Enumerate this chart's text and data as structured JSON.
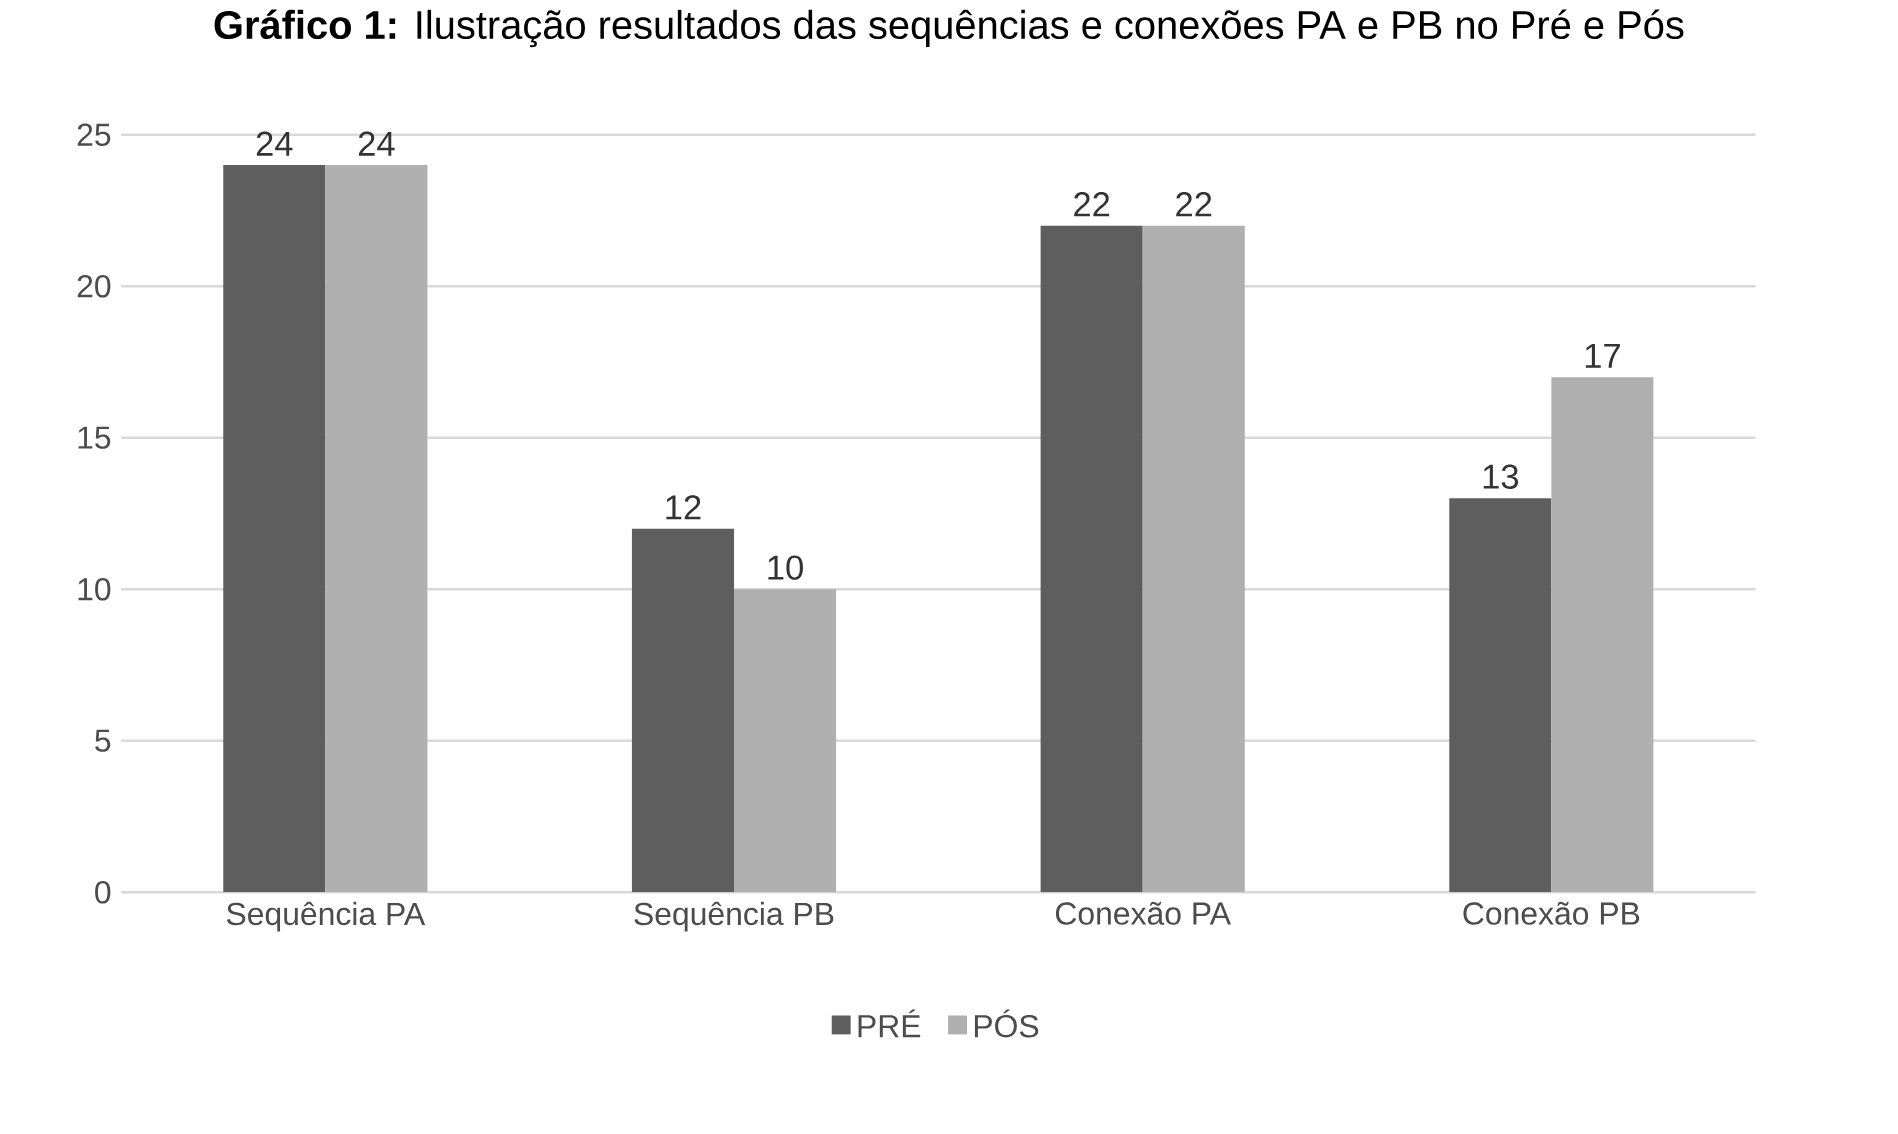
{
  "chart_data": {
    "type": "bar",
    "title": "**Gráfico 1:** Ilustração resultados das sequências e conexões PA e PB no Pré e Pós",
    "categories": [
      "Sequência PA",
      "Sequência PB",
      "Conexão PA",
      "Conexão PB"
    ],
    "series": [
      {
        "name": "PRÉ",
        "color": "#5e5e5e",
        "values": [
          24,
          12,
          22,
          13
        ]
      },
      {
        "name": "PÓS",
        "color": "#b0b0b0",
        "values": [
          24,
          10,
          22,
          17
        ]
      }
    ],
    "ylim": [
      0,
      25
    ],
    "yticks": [
      0,
      5,
      10,
      15,
      20,
      25
    ],
    "grid": "y",
    "legend": "bottom",
    "data_labels": true
  }
}
